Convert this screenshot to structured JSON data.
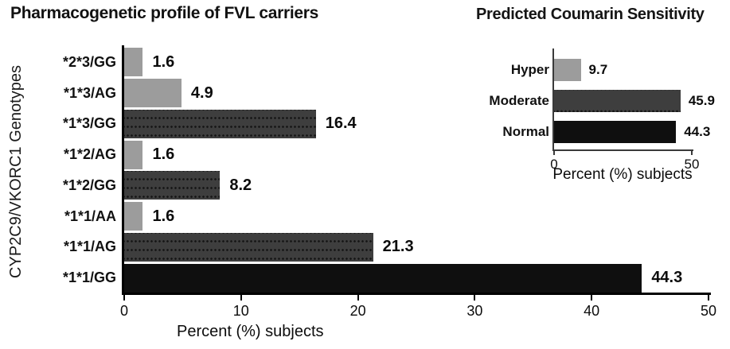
{
  "chart_data": [
    {
      "type": "bar",
      "orientation": "horizontal",
      "title": "Pharmacogenetic profile of FVL carriers",
      "ylabel": "CYP2C9/VKORC1 Genotypes",
      "xlabel": "Percent (%) subjects",
      "xlim": [
        0,
        50
      ],
      "x_ticks": [
        0,
        10,
        20,
        30,
        40,
        50
      ],
      "grid": false,
      "legend": "none",
      "categories": [
        "*2*3/GG",
        "*1*3/AG",
        "*1*3/GG",
        "*1*2/AG",
        "*1*2/GG",
        "*1*1/AA",
        "*1*1/AG",
        "*1*1/GG"
      ],
      "values": [
        1.6,
        4.9,
        16.4,
        1.6,
        8.2,
        1.6,
        21.3,
        44.3
      ],
      "bars": [
        {
          "label": "*2*3/GG",
          "value": 1.6,
          "style": "light"
        },
        {
          "label": "*1*3/AG",
          "value": 4.9,
          "style": "light"
        },
        {
          "label": "*1*3/GG",
          "value": 16.4,
          "style": "dark"
        },
        {
          "label": "*1*2/AG",
          "value": 1.6,
          "style": "light"
        },
        {
          "label": "*1*2/GG",
          "value": 8.2,
          "style": "dark"
        },
        {
          "label": "*1*1/AA",
          "value": 1.6,
          "style": "light"
        },
        {
          "label": "*1*1/AG",
          "value": 21.3,
          "style": "dark"
        },
        {
          "label": "*1*1/GG",
          "value": 44.3,
          "style": "black"
        }
      ]
    },
    {
      "type": "bar",
      "orientation": "horizontal",
      "title": "Predicted Coumarin Sensitivity",
      "ylabel": "",
      "xlabel": "Percent (%) subjects",
      "xlim": [
        0,
        50
      ],
      "x_ticks": [
        0,
        50
      ],
      "grid": false,
      "legend": "none",
      "categories": [
        "Hyper",
        "Moderate",
        "Normal"
      ],
      "values": [
        9.7,
        45.9,
        44.3
      ],
      "bars": [
        {
          "label": "Hyper",
          "value": 9.7,
          "style": "light"
        },
        {
          "label": "Moderate",
          "value": 45.9,
          "style": "dark"
        },
        {
          "label": "Normal",
          "value": 44.3,
          "style": "black"
        }
      ]
    }
  ],
  "colors": {
    "bar_light": "#9c9c9c",
    "bar_dark": "#3e3e3e",
    "bar_dark_dots": "#151515",
    "bar_black": "#0f0f0f",
    "axis_main": "#000000",
    "axis_inset": "#3a3a3a",
    "text": "#111111",
    "background": "#ffffff"
  }
}
